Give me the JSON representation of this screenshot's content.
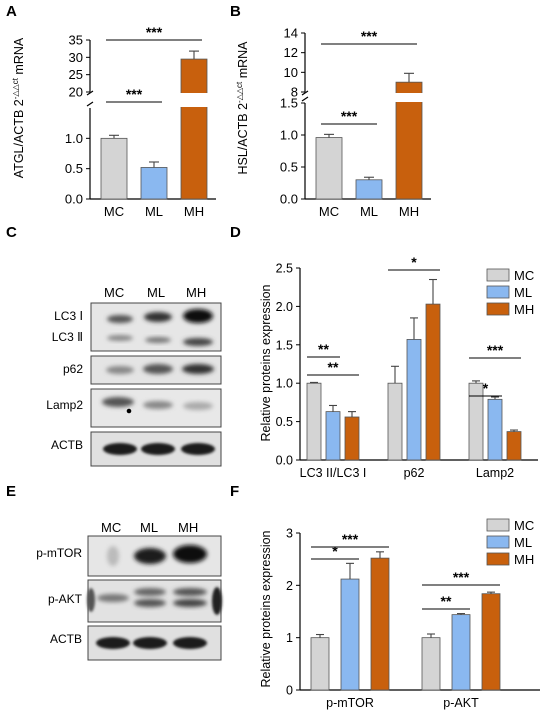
{
  "panel_letters": {
    "a": "A",
    "b": "B",
    "c": "C",
    "d": "D",
    "e": "E",
    "f": "F"
  },
  "colors": {
    "MC": "#d4d4d4",
    "ML": "#8ab8f0",
    "MH": "#c8600d"
  },
  "chart_data": [
    {
      "id": "A",
      "type": "bar",
      "ylabel": "ATGL/ACTB 2^-ΔΔct mRNA",
      "ylabel_main": "ATGL/ACTB 2",
      "ylabel_sup": "-△△ct",
      "ylabel_tail": " mRNA",
      "categories": [
        "MC",
        "ML",
        "MH"
      ],
      "values": [
        1.0,
        0.52,
        29.5
      ],
      "errors": [
        0.05,
        0.09,
        2.3
      ],
      "axis_breaks": [
        [
          1.5,
          19.0
        ]
      ],
      "lower_ticks": [
        "0.0",
        "0.5",
        "1.0"
      ],
      "upper_ticks": [
        "20",
        "25",
        "30",
        "35"
      ],
      "significance": [
        {
          "from": "MC",
          "to": "ML",
          "label": "***"
        },
        {
          "from": "MC",
          "to": "MH",
          "label": "***"
        }
      ]
    },
    {
      "id": "B",
      "type": "bar",
      "ylabel": "HSL/ACTB 2^-ΔΔct mRNA",
      "ylabel_main": "HSL/ACTB 2",
      "ylabel_sup": "-△△ct",
      "ylabel_tail": " mRNA",
      "categories": [
        "MC",
        "ML",
        "MH"
      ],
      "values": [
        0.96,
        0.3,
        9.0
      ],
      "errors": [
        0.05,
        0.04,
        0.9
      ],
      "axis_breaks": [
        [
          1.5,
          7.5
        ]
      ],
      "lower_ticks": [
        "0.0",
        "0.5",
        "1.0",
        "1.5"
      ],
      "upper_ticks": [
        "8",
        "10",
        "12",
        "14"
      ],
      "significance": [
        {
          "from": "MC",
          "to": "ML",
          "label": "***"
        },
        {
          "from": "MC",
          "to": "MH",
          "label": "***"
        }
      ]
    },
    {
      "id": "D",
      "type": "bar",
      "ylabel": "Relative proteins expression",
      "categories": [
        "LC3 II/LC3 I",
        "p62",
        "Lamp2"
      ],
      "series": [
        {
          "name": "MC",
          "values": [
            1.0,
            1.0,
            1.0
          ],
          "errors": [
            0.01,
            0.22,
            0.03
          ]
        },
        {
          "name": "ML",
          "values": [
            0.63,
            1.57,
            0.79
          ],
          "errors": [
            0.08,
            0.28,
            0.03
          ]
        },
        {
          "name": "MH",
          "values": [
            0.56,
            2.03,
            0.37
          ],
          "errors": [
            0.07,
            0.32,
            0.02
          ]
        }
      ],
      "ylim": [
        0,
        2.5
      ],
      "yticks": [
        "0.0",
        "0.5",
        "1.0",
        "1.5",
        "2.0",
        "2.5"
      ],
      "legend": "top-right",
      "significance": [
        {
          "category": "LC3 II/LC3 I",
          "from": "MC",
          "to": "ML",
          "label": "**"
        },
        {
          "category": "LC3 II/LC3 I",
          "from": "MC",
          "to": "MH",
          "label": "**"
        },
        {
          "category": "p62",
          "from": "MC",
          "to": "MH",
          "label": "*"
        },
        {
          "category": "Lamp2",
          "from": "MC",
          "to": "ML",
          "label": "*"
        },
        {
          "category": "Lamp2",
          "from": "MC",
          "to": "MH",
          "label": "***"
        }
      ]
    },
    {
      "id": "F",
      "type": "bar",
      "ylabel": "Relative proteins expression",
      "categories": [
        "p-mTOR",
        "p-AKT"
      ],
      "series": [
        {
          "name": "MC",
          "values": [
            1.0,
            1.0
          ],
          "errors": [
            0.06,
            0.07
          ]
        },
        {
          "name": "ML",
          "values": [
            2.12,
            1.44
          ],
          "errors": [
            0.3,
            0.02
          ]
        },
        {
          "name": "MH",
          "values": [
            2.52,
            1.84
          ],
          "errors": [
            0.12,
            0.03
          ]
        }
      ],
      "ylim": [
        0,
        3
      ],
      "yticks": [
        "0",
        "1",
        "2",
        "3"
      ],
      "legend": "top-right",
      "significance": [
        {
          "category": "p-mTOR",
          "from": "MC",
          "to": "ML",
          "label": "*"
        },
        {
          "category": "p-mTOR",
          "from": "MC",
          "to": "MH",
          "label": "***"
        },
        {
          "category": "p-AKT",
          "from": "MC",
          "to": "ML",
          "label": "**"
        },
        {
          "category": "p-AKT",
          "from": "MC",
          "to": "MH",
          "label": "***"
        }
      ]
    }
  ],
  "blots": {
    "C": {
      "lanes": [
        "MC",
        "ML",
        "MH"
      ],
      "rows": [
        {
          "labels": [
            "LC3 Ⅰ",
            "LC3 Ⅱ"
          ]
        },
        {
          "labels": [
            "p62"
          ]
        },
        {
          "labels": [
            "Lamp2"
          ]
        },
        {
          "labels": [
            "ACTB"
          ]
        }
      ]
    },
    "E": {
      "lanes": [
        "MC",
        "ML",
        "MH"
      ],
      "rows": [
        {
          "labels": [
            "p-mTOR"
          ]
        },
        {
          "labels": [
            "p-AKT"
          ]
        },
        {
          "labels": [
            "ACTB"
          ]
        }
      ]
    }
  }
}
